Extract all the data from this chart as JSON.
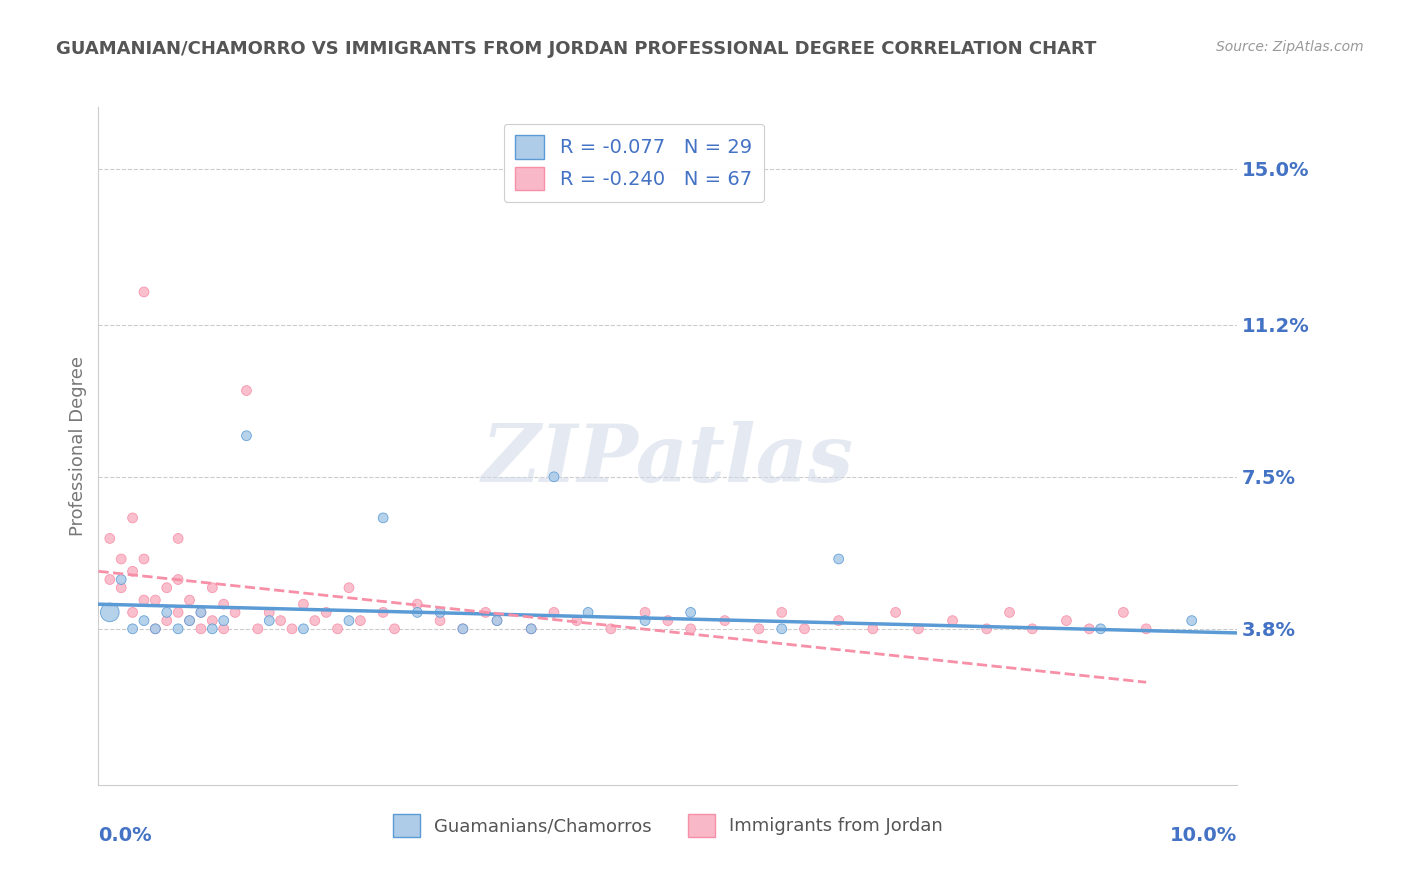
{
  "title": "GUAMANIAN/CHAMORRO VS IMMIGRANTS FROM JORDAN PROFESSIONAL DEGREE CORRELATION CHART",
  "source_text": "Source: ZipAtlas.com",
  "xlabel_bottom_left": "0.0%",
  "xlabel_bottom_right": "10.0%",
  "ylabel": "Professional Degree",
  "y_tick_labels": [
    "3.8%",
    "7.5%",
    "11.2%",
    "15.0%"
  ],
  "y_tick_values": [
    0.038,
    0.075,
    0.112,
    0.15
  ],
  "x_min": 0.0,
  "x_max": 0.1,
  "y_min": 0.0,
  "y_max": 0.165,
  "legend_labels_bottom": [
    "Guamanians/Chamorros",
    "Immigrants from Jordan"
  ],
  "watermark": "ZIPatlas",
  "blue_color": "#5b9bd5",
  "pink_color": "#f78fa7",
  "blue_dot_color": "#aecce8",
  "pink_dot_color": "#f9b8c8",
  "title_color": "#555555",
  "axis_label_color": "#4472c4",
  "blue_scatter_x": [
    0.001,
    0.002,
    0.003,
    0.004,
    0.005,
    0.006,
    0.007,
    0.008,
    0.009,
    0.01,
    0.011,
    0.013,
    0.015,
    0.018,
    0.022,
    0.025,
    0.028,
    0.03,
    0.032,
    0.035,
    0.038,
    0.04,
    0.043,
    0.048,
    0.052,
    0.06,
    0.065,
    0.088,
    0.096
  ],
  "blue_scatter_y": [
    0.042,
    0.05,
    0.038,
    0.04,
    0.038,
    0.042,
    0.038,
    0.04,
    0.042,
    0.038,
    0.04,
    0.085,
    0.04,
    0.038,
    0.04,
    0.065,
    0.042,
    0.042,
    0.038,
    0.04,
    0.038,
    0.075,
    0.042,
    0.04,
    0.042,
    0.038,
    0.055,
    0.038,
    0.04
  ],
  "blue_scatter_sizes": [
    180,
    50,
    50,
    50,
    50,
    50,
    50,
    50,
    50,
    50,
    50,
    50,
    50,
    50,
    50,
    50,
    50,
    50,
    50,
    50,
    50,
    50,
    50,
    50,
    50,
    50,
    50,
    50,
    50
  ],
  "pink_scatter_x": [
    0.001,
    0.001,
    0.002,
    0.002,
    0.003,
    0.003,
    0.003,
    0.004,
    0.004,
    0.004,
    0.005,
    0.005,
    0.006,
    0.006,
    0.007,
    0.007,
    0.007,
    0.008,
    0.008,
    0.009,
    0.009,
    0.01,
    0.01,
    0.011,
    0.011,
    0.012,
    0.013,
    0.014,
    0.015,
    0.016,
    0.017,
    0.018,
    0.019,
    0.02,
    0.021,
    0.022,
    0.023,
    0.025,
    0.026,
    0.028,
    0.03,
    0.032,
    0.034,
    0.035,
    0.038,
    0.04,
    0.042,
    0.045,
    0.048,
    0.05,
    0.052,
    0.055,
    0.058,
    0.06,
    0.062,
    0.065,
    0.068,
    0.07,
    0.072,
    0.075,
    0.078,
    0.08,
    0.082,
    0.085,
    0.087,
    0.09,
    0.092
  ],
  "pink_scatter_y": [
    0.05,
    0.06,
    0.048,
    0.055,
    0.042,
    0.052,
    0.065,
    0.045,
    0.055,
    0.12,
    0.038,
    0.045,
    0.04,
    0.048,
    0.042,
    0.05,
    0.06,
    0.04,
    0.045,
    0.038,
    0.042,
    0.04,
    0.048,
    0.038,
    0.044,
    0.042,
    0.096,
    0.038,
    0.042,
    0.04,
    0.038,
    0.044,
    0.04,
    0.042,
    0.038,
    0.048,
    0.04,
    0.042,
    0.038,
    0.044,
    0.04,
    0.038,
    0.042,
    0.04,
    0.038,
    0.042,
    0.04,
    0.038,
    0.042,
    0.04,
    0.038,
    0.04,
    0.038,
    0.042,
    0.038,
    0.04,
    0.038,
    0.042,
    0.038,
    0.04,
    0.038,
    0.042,
    0.038,
    0.04,
    0.038,
    0.042,
    0.038
  ],
  "pink_scatter_sizes": [
    50,
    50,
    50,
    50,
    50,
    50,
    50,
    50,
    50,
    50,
    50,
    50,
    50,
    50,
    50,
    50,
    50,
    50,
    50,
    50,
    50,
    50,
    50,
    50,
    50,
    50,
    50,
    50,
    50,
    50,
    50,
    50,
    50,
    50,
    50,
    50,
    50,
    50,
    50,
    50,
    50,
    50,
    50,
    50,
    50,
    50,
    50,
    50,
    50,
    50,
    50,
    50,
    50,
    50,
    50,
    50,
    50,
    50,
    50,
    50,
    50,
    50,
    50,
    50,
    50,
    50,
    50
  ],
  "blue_line_x": [
    0.0,
    0.1
  ],
  "blue_line_y": [
    0.044,
    0.037
  ],
  "pink_line_x": [
    0.0,
    0.092
  ],
  "pink_line_y": [
    0.052,
    0.025
  ],
  "grid_color": "#cccccc",
  "background_color": "#ffffff"
}
